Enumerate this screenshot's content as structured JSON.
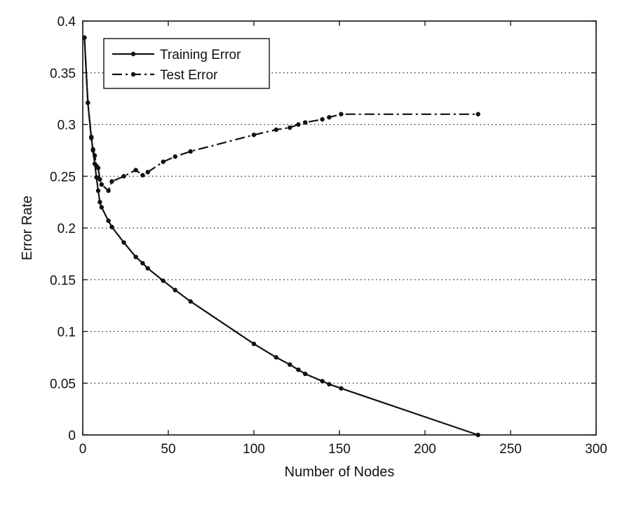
{
  "chart_data": {
    "type": "line",
    "title": "",
    "xlabel": "Number of Nodes",
    "ylabel": "Error Rate",
    "xlim": [
      0,
      300
    ],
    "ylim": [
      0,
      0.4
    ],
    "x_ticks": [
      0,
      50,
      100,
      150,
      200,
      250,
      300
    ],
    "x_tick_labels": [
      "0",
      "50",
      "100",
      "150",
      "200",
      "250",
      "300"
    ],
    "y_ticks": [
      0,
      0.05,
      0.1,
      0.15,
      0.2,
      0.25,
      0.3,
      0.35,
      0.4
    ],
    "y_tick_labels": [
      "0",
      "0.05",
      "0.1",
      "0.15",
      "0.2",
      "0.25",
      "0.3",
      "0.35",
      "0.4"
    ],
    "grid": "horizontal dotted",
    "legend_position": "top-left",
    "series": [
      {
        "name": "Training Error",
        "line_style": "solid",
        "color": "#111111",
        "x": [
          1,
          3,
          5,
          6,
          7,
          8,
          9,
          10,
          11,
          15,
          17,
          24,
          31,
          35,
          38,
          47,
          54,
          63,
          100,
          113,
          121,
          126,
          130,
          140,
          144,
          151,
          231
        ],
        "y": [
          0.384,
          0.321,
          0.287,
          0.275,
          0.262,
          0.249,
          0.236,
          0.225,
          0.22,
          0.207,
          0.201,
          0.186,
          0.172,
          0.166,
          0.161,
          0.149,
          0.14,
          0.129,
          0.088,
          0.075,
          0.068,
          0.063,
          0.059,
          0.052,
          0.049,
          0.045,
          0.0
        ]
      },
      {
        "name": "Test Error",
        "line_style": "dash-dot",
        "color": "#111111",
        "x": [
          1,
          3,
          5,
          6,
          7,
          8,
          9,
          10,
          11,
          15,
          17,
          24,
          31,
          35,
          38,
          47,
          54,
          63,
          100,
          113,
          121,
          126,
          130,
          140,
          144,
          151,
          231
        ],
        "y": [
          0.384,
          0.321,
          0.288,
          0.276,
          0.27,
          0.26,
          0.258,
          0.247,
          0.242,
          0.236,
          0.245,
          0.25,
          0.256,
          0.251,
          0.254,
          0.264,
          0.269,
          0.274,
          0.29,
          0.295,
          0.297,
          0.3,
          0.302,
          0.305,
          0.307,
          0.31,
          0.31
        ]
      }
    ]
  }
}
